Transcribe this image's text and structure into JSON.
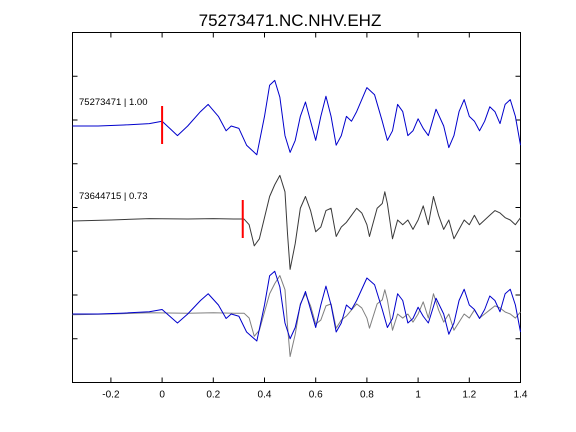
{
  "chart_data": {
    "type": "line",
    "title": "75273471.NC.NHV.EHZ",
    "xlabel": "",
    "ylabel": "",
    "xlim": [
      -0.35,
      1.4
    ],
    "xticks": [
      -0.2,
      0,
      0.2,
      0.4,
      0.6,
      0.8,
      1,
      1.2,
      1.4
    ],
    "xtick_labels": [
      "-0.2",
      "0",
      "0.2",
      "0.4",
      "0.6",
      "0.8",
      "1",
      "1.2",
      "1.4"
    ],
    "grid": false,
    "colors": {
      "master": "#0000cc",
      "other": "#3a3a3a",
      "overlay_other": "#808080",
      "pick": "#ff0000"
    },
    "traces": [
      {
        "label": "75273471 | 1.00",
        "event": "75273471",
        "correlation": "1.00",
        "pick_time": 0.0,
        "baseline": 0,
        "color": "master",
        "points": [
          [
            -0.35,
            0.0
          ],
          [
            -0.25,
            0.0
          ],
          [
            -0.15,
            0.02
          ],
          [
            -0.05,
            0.05
          ],
          [
            0.0,
            0.1
          ],
          [
            0.03,
            -0.05
          ],
          [
            0.06,
            -0.2
          ],
          [
            0.1,
            0.0
          ],
          [
            0.15,
            0.3
          ],
          [
            0.18,
            0.45
          ],
          [
            0.22,
            0.2
          ],
          [
            0.25,
            -0.1
          ],
          [
            0.27,
            0.0
          ],
          [
            0.3,
            -0.05
          ],
          [
            0.33,
            -0.4
          ],
          [
            0.37,
            -0.6
          ],
          [
            0.4,
            0.2
          ],
          [
            0.42,
            0.85
          ],
          [
            0.44,
            0.95
          ],
          [
            0.46,
            0.6
          ],
          [
            0.48,
            -0.2
          ],
          [
            0.5,
            -0.55
          ],
          [
            0.52,
            -0.3
          ],
          [
            0.54,
            0.2
          ],
          [
            0.56,
            0.5
          ],
          [
            0.58,
            0.1
          ],
          [
            0.6,
            -0.3
          ],
          [
            0.62,
            0.2
          ],
          [
            0.64,
            0.62
          ],
          [
            0.66,
            0.2
          ],
          [
            0.68,
            -0.4
          ],
          [
            0.7,
            -0.2
          ],
          [
            0.72,
            0.2
          ],
          [
            0.74,
            0.1
          ],
          [
            0.76,
            0.3
          ],
          [
            0.8,
            0.8
          ],
          [
            0.83,
            0.65
          ],
          [
            0.86,
            0.1
          ],
          [
            0.88,
            -0.3
          ],
          [
            0.9,
            -0.1
          ],
          [
            0.92,
            0.45
          ],
          [
            0.94,
            0.3
          ],
          [
            0.96,
            -0.2
          ],
          [
            0.98,
            -0.1
          ],
          [
            1.0,
            0.15
          ],
          [
            1.02,
            -0.05
          ],
          [
            1.04,
            -0.2
          ],
          [
            1.07,
            0.35
          ],
          [
            1.1,
            0.0
          ],
          [
            1.12,
            -0.45
          ],
          [
            1.14,
            -0.2
          ],
          [
            1.16,
            0.3
          ],
          [
            1.18,
            0.55
          ],
          [
            1.2,
            0.2
          ],
          [
            1.22,
            0.1
          ],
          [
            1.24,
            -0.1
          ],
          [
            1.26,
            0.1
          ],
          [
            1.28,
            0.4
          ],
          [
            1.3,
            0.3
          ],
          [
            1.32,
            0.05
          ],
          [
            1.34,
            0.45
          ],
          [
            1.36,
            0.55
          ],
          [
            1.38,
            0.2
          ],
          [
            1.4,
            -0.4
          ]
        ]
      },
      {
        "label": "73644715 | 0.73",
        "event": "73644715",
        "correlation": "0.73",
        "pick_time": 0.315,
        "baseline": 0,
        "color": "other",
        "points": [
          [
            -0.35,
            -0.02
          ],
          [
            -0.2,
            0.0
          ],
          [
            -0.05,
            0.03
          ],
          [
            0.1,
            0.02
          ],
          [
            0.2,
            0.03
          ],
          [
            0.28,
            0.02
          ],
          [
            0.32,
            0.02
          ],
          [
            0.34,
            -0.1
          ],
          [
            0.36,
            -0.55
          ],
          [
            0.38,
            -0.4
          ],
          [
            0.4,
            0.05
          ],
          [
            0.42,
            0.5
          ],
          [
            0.44,
            0.75
          ],
          [
            0.46,
            0.95
          ],
          [
            0.48,
            0.6
          ],
          [
            0.49,
            -0.3
          ],
          [
            0.5,
            -1.05
          ],
          [
            0.52,
            -0.5
          ],
          [
            0.54,
            0.25
          ],
          [
            0.56,
            0.5
          ],
          [
            0.58,
            0.2
          ],
          [
            0.6,
            -0.25
          ],
          [
            0.62,
            -0.15
          ],
          [
            0.64,
            0.2
          ],
          [
            0.66,
            0.25
          ],
          [
            0.68,
            -0.35
          ],
          [
            0.7,
            -0.15
          ],
          [
            0.72,
            -0.05
          ],
          [
            0.74,
            0.1
          ],
          [
            0.76,
            0.25
          ],
          [
            0.78,
            0.15
          ],
          [
            0.8,
            -0.1
          ],
          [
            0.81,
            -0.35
          ],
          [
            0.82,
            -0.15
          ],
          [
            0.84,
            0.25
          ],
          [
            0.86,
            0.35
          ],
          [
            0.87,
            0.6
          ],
          [
            0.88,
            0.35
          ],
          [
            0.9,
            -0.4
          ],
          [
            0.92,
            0.0
          ],
          [
            0.94,
            -0.1
          ],
          [
            0.96,
            0.0
          ],
          [
            0.98,
            -0.2
          ],
          [
            1.0,
            0.0
          ],
          [
            1.02,
            0.3
          ],
          [
            1.04,
            -0.1
          ],
          [
            1.06,
            0.5
          ],
          [
            1.08,
            0.1
          ],
          [
            1.1,
            -0.2
          ],
          [
            1.12,
            0.0
          ],
          [
            1.14,
            -0.4
          ],
          [
            1.16,
            -0.2
          ],
          [
            1.18,
            0.0
          ],
          [
            1.2,
            -0.1
          ],
          [
            1.22,
            0.1
          ],
          [
            1.24,
            -0.1
          ],
          [
            1.26,
            0.0
          ],
          [
            1.28,
            0.1
          ],
          [
            1.3,
            0.2
          ],
          [
            1.32,
            0.15
          ],
          [
            1.34,
            0.05
          ],
          [
            1.36,
            0.0
          ],
          [
            1.38,
            -0.1
          ],
          [
            1.4,
            0.05
          ]
        ]
      }
    ],
    "overlay": {
      "description_free": true,
      "series": [
        "master",
        "other"
      ]
    }
  }
}
